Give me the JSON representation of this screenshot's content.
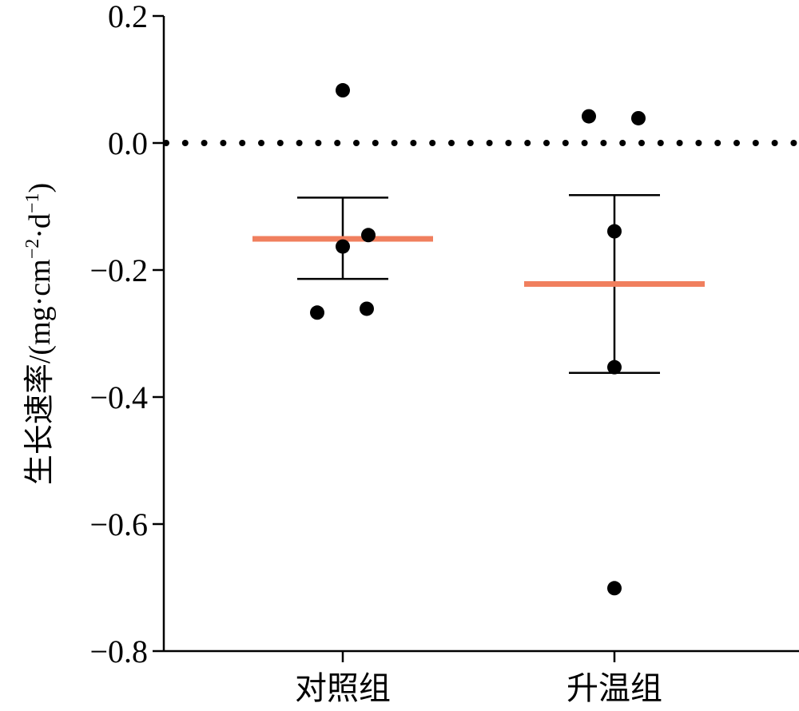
{
  "chart_data": {
    "type": "scatter",
    "title": "",
    "xlabel": "",
    "ylabel": "生长速率/(mg·cm",
    "ylabel_sup1": "−2",
    "ylabel_mid": "·d",
    "ylabel_sup2": "−1",
    "ylabel_end": ")",
    "categories": [
      "对照组",
      "升温组"
    ],
    "ylim": [
      -0.8,
      0.2
    ],
    "yticks": [
      0.2,
      0.0,
      -0.2,
      -0.4,
      -0.6,
      -0.8
    ],
    "ytick_labels": [
      "0.2",
      "0.0",
      "−0.2",
      "−0.4",
      "−0.6",
      "−0.8"
    ],
    "reference_line": {
      "y": 0.0,
      "style": "dotted"
    },
    "groups": [
      {
        "category": "对照组",
        "points": [
          0.083,
          -0.163,
          -0.145,
          -0.267,
          -0.261
        ],
        "mean": -0.151,
        "error_upper": -0.086,
        "error_lower": -0.214
      },
      {
        "category": "升温组",
        "points": [
          0.042,
          0.039,
          -0.139,
          -0.353,
          -0.701
        ],
        "mean": -0.222,
        "error_upper": -0.082,
        "error_lower": -0.362
      }
    ],
    "colors": {
      "mean": "#f07f5e",
      "point": "#000000",
      "error": "#000000"
    },
    "grid": false
  }
}
